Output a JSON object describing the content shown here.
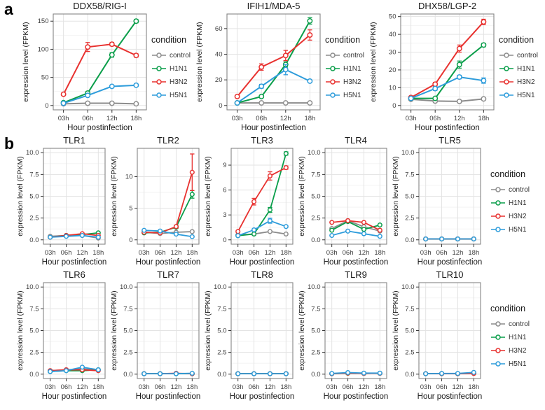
{
  "figure": {
    "panel_a_label": "a",
    "panel_b_label": "b"
  },
  "legend": {
    "title": "condition",
    "items": [
      {
        "label": "control",
        "color": "#8c8c8c"
      },
      {
        "label": "H1N1",
        "color": "#0a9e4a"
      },
      {
        "label": "H3N2",
        "color": "#e8312f"
      },
      {
        "label": "H5N1",
        "color": "#2d9cdb"
      }
    ]
  },
  "axes": {
    "xlabel": "Hour postinfection",
    "ylabel": "expression level (FPKM)",
    "xticks": [
      "03h",
      "06h",
      "12h",
      "18h"
    ]
  },
  "chart_data": [
    {
      "panel": "a",
      "type": "line",
      "title": "DDX58/RIG-I",
      "xlabel": "Hour postinfection",
      "ylabel": "expression level (FPKM)",
      "x": [
        "03h",
        "06h",
        "12h",
        "18h"
      ],
      "yticks": [
        0,
        50,
        100,
        150
      ],
      "ytick_labels": [
        "0",
        "50",
        "100",
        "150"
      ],
      "ylim": [
        0,
        155
      ],
      "series": [
        {
          "name": "control",
          "values": [
            3,
            4,
            4,
            3
          ],
          "err": [
            0,
            0,
            0,
            0
          ]
        },
        {
          "name": "H1N1",
          "values": [
            5,
            22,
            90,
            150
          ],
          "err": [
            0,
            3,
            4,
            3
          ]
        },
        {
          "name": "H3N2",
          "values": [
            20,
            104,
            109,
            89
          ],
          "err": [
            1,
            8,
            3,
            3
          ]
        },
        {
          "name": "H5N1",
          "values": [
            4,
            18,
            34,
            36
          ],
          "err": [
            0,
            2,
            2,
            2
          ]
        }
      ]
    },
    {
      "panel": "a",
      "type": "line",
      "title": "IFIH1/MDA-5",
      "xlabel": "Hour postinfection",
      "ylabel": "expression level (FPKM)",
      "x": [
        "03h",
        "06h",
        "12h",
        "18h"
      ],
      "yticks": [
        0,
        20,
        40,
        60
      ],
      "ytick_labels": [
        "0",
        "20",
        "40",
        "60"
      ],
      "ylim": [
        0,
        68
      ],
      "series": [
        {
          "name": "control",
          "values": [
            2,
            2,
            2,
            2
          ],
          "err": [
            0,
            0,
            0,
            0
          ]
        },
        {
          "name": "H1N1",
          "values": [
            2,
            7,
            32,
            66
          ],
          "err": [
            0,
            1,
            2,
            2.5
          ]
        },
        {
          "name": "H3N2",
          "values": [
            7,
            30,
            39,
            55
          ],
          "err": [
            0.5,
            2.5,
            4,
            4
          ]
        },
        {
          "name": "H5N1",
          "values": [
            2,
            15,
            28,
            19
          ],
          "err": [
            0,
            1.5,
            4,
            1
          ]
        }
      ]
    },
    {
      "panel": "a",
      "type": "line",
      "title": "DHX58/LGP-2",
      "xlabel": "Hour postinfection",
      "ylabel": "expression level (FPKM)",
      "x": [
        "03h",
        "06h",
        "12h",
        "18h"
      ],
      "yticks": [
        0,
        10,
        20,
        30,
        40,
        50
      ],
      "ytick_labels": [
        "0",
        "10",
        "20",
        "30",
        "40",
        "50"
      ],
      "ylim": [
        0,
        49
      ],
      "series": [
        {
          "name": "control",
          "values": [
            3.5,
            2.5,
            2.3,
            3.7
          ],
          "err": [
            0,
            0,
            0,
            0
          ]
        },
        {
          "name": "H1N1",
          "values": [
            4,
            4,
            23,
            34
          ],
          "err": [
            0,
            0.5,
            2,
            1
          ]
        },
        {
          "name": "H3N2",
          "values": [
            4.5,
            12,
            32,
            47
          ],
          "err": [
            0.5,
            1,
            2,
            1.5
          ]
        },
        {
          "name": "H5N1",
          "values": [
            4,
            9.5,
            16,
            14
          ],
          "err": [
            0,
            1,
            1,
            1.5
          ]
        }
      ]
    },
    {
      "panel": "b1",
      "type": "line",
      "title": "TLR1",
      "xlabel": "Hour postinfection",
      "ylabel": "expression level (FPKM)",
      "x": [
        "03h",
        "06h",
        "12h",
        "18h"
      ],
      "yticks": [
        0,
        2.5,
        5,
        7.5,
        10
      ],
      "ytick_labels": [
        "0.0",
        "2.5",
        "5.0",
        "7.5",
        "10.0"
      ],
      "ylim": [
        0,
        10
      ],
      "series": [
        {
          "name": "control",
          "values": [
            0.4,
            0.5,
            0.5,
            0.2
          ],
          "err": [
            0,
            0,
            0,
            0
          ]
        },
        {
          "name": "H1N1",
          "values": [
            0.3,
            0.5,
            0.6,
            0.8
          ],
          "err": [
            0,
            0,
            0,
            0
          ]
        },
        {
          "name": "H3N2",
          "values": [
            0.3,
            0.5,
            0.7,
            0.5
          ],
          "err": [
            0,
            0,
            0,
            0
          ]
        },
        {
          "name": "H5N1",
          "values": [
            0.3,
            0.4,
            0.5,
            0.3
          ],
          "err": [
            0,
            0,
            0,
            0
          ]
        }
      ]
    },
    {
      "panel": "b1",
      "type": "line",
      "title": "TLR2",
      "xlabel": "Hour postinfection",
      "ylabel": "expression level (FPKM)",
      "x": [
        "03h",
        "06h",
        "12h",
        "18h"
      ],
      "yticks": [
        0,
        5,
        10
      ],
      "ytick_labels": [
        "0",
        "5",
        "10"
      ],
      "ylim": [
        0,
        13.8
      ],
      "series": [
        {
          "name": "control",
          "values": [
            1.2,
            1.0,
            1.2,
            1.3
          ],
          "err": [
            0,
            0,
            0,
            0
          ]
        },
        {
          "name": "H1N1",
          "values": [
            1.1,
            1.2,
            2.0,
            7.2
          ],
          "err": [
            0,
            0,
            0.2,
            0.6
          ]
        },
        {
          "name": "H3N2",
          "values": [
            1.2,
            1.1,
            2.1,
            10.7
          ],
          "err": [
            0,
            0,
            0.2,
            2.9
          ]
        },
        {
          "name": "H5N1",
          "values": [
            1.5,
            1.4,
            0.9,
            0.5
          ],
          "err": [
            0,
            0,
            0,
            0
          ]
        }
      ]
    },
    {
      "panel": "b1",
      "type": "line",
      "title": "TLR3",
      "xlabel": "Hour postinfection",
      "ylabel": "expression level (FPKM)",
      "x": [
        "03h",
        "06h",
        "12h",
        "18h"
      ],
      "yticks": [
        0,
        3,
        6,
        9
      ],
      "ytick_labels": [
        "0",
        "3",
        "6",
        "9"
      ],
      "ylim": [
        0,
        10.5
      ],
      "series": [
        {
          "name": "control",
          "values": [
            0.6,
            0.7,
            1.0,
            0.7
          ],
          "err": [
            0,
            0,
            0,
            0
          ]
        },
        {
          "name": "H1N1",
          "values": [
            0.5,
            0.7,
            3.6,
            10.4
          ],
          "err": [
            0,
            0,
            0.3,
            0.2
          ]
        },
        {
          "name": "H3N2",
          "values": [
            1.0,
            4.6,
            7.7,
            8.7
          ],
          "err": [
            0.1,
            0.4,
            0.5,
            0.2
          ]
        },
        {
          "name": "H5N1",
          "values": [
            0.5,
            1.2,
            2.3,
            1.6
          ],
          "err": [
            0,
            0.1,
            0.3,
            0.1
          ]
        }
      ]
    },
    {
      "panel": "b1",
      "type": "line",
      "title": "TLR4",
      "xlabel": "Hour postinfection",
      "ylabel": "expression level (FPKM)",
      "x": [
        "03h",
        "06h",
        "12h",
        "18h"
      ],
      "yticks": [
        0,
        2.5,
        5,
        7.5,
        10
      ],
      "ytick_labels": [
        "0.0",
        "2.5",
        "5.0",
        "7.5",
        "10.0"
      ],
      "ylim": [
        0,
        10
      ],
      "series": [
        {
          "name": "control",
          "values": [
            1.3,
            2.2,
            1.5,
            1.0
          ],
          "err": [
            0,
            0,
            0,
            0
          ]
        },
        {
          "name": "H1N1",
          "values": [
            1.1,
            2.1,
            1.2,
            1.7
          ],
          "err": [
            0,
            0,
            0,
            0
          ]
        },
        {
          "name": "H3N2",
          "values": [
            2.0,
            2.2,
            2.0,
            1.1
          ],
          "err": [
            0,
            0,
            0,
            0
          ]
        },
        {
          "name": "H5N1",
          "values": [
            0.5,
            1.0,
            0.7,
            0.4
          ],
          "err": [
            0,
            0,
            0,
            0
          ]
        }
      ]
    },
    {
      "panel": "b1",
      "type": "line",
      "title": "TLR5",
      "xlabel": "Hour postinfection",
      "ylabel": "expression level (FPKM)",
      "x": [
        "03h",
        "06h",
        "12h",
        "18h"
      ],
      "yticks": [
        0,
        2.5,
        5,
        7.5,
        10
      ],
      "ytick_labels": [
        "0.0",
        "2.5",
        "5.0",
        "7.5",
        "10.0"
      ],
      "ylim": [
        0,
        10
      ],
      "series": [
        {
          "name": "control",
          "values": [
            0.1,
            0.1,
            0.1,
            0.1
          ],
          "err": [
            0,
            0,
            0,
            0
          ]
        },
        {
          "name": "H1N1",
          "values": [
            0.1,
            0.1,
            0.1,
            0.1
          ],
          "err": [
            0,
            0,
            0,
            0
          ]
        },
        {
          "name": "H3N2",
          "values": [
            0.1,
            0.1,
            0.1,
            0.1
          ],
          "err": [
            0,
            0,
            0,
            0
          ]
        },
        {
          "name": "H5N1",
          "values": [
            0.1,
            0.1,
            0.1,
            0.1
          ],
          "err": [
            0,
            0,
            0,
            0
          ]
        }
      ]
    },
    {
      "panel": "b2",
      "type": "line",
      "title": "TLR6",
      "xlabel": "Hour postinfection",
      "ylabel": "expression level (FPKM)",
      "x": [
        "03h",
        "06h",
        "12h",
        "18h"
      ],
      "yticks": [
        0,
        2.5,
        5,
        7.5,
        10
      ],
      "ytick_labels": [
        "0.0",
        "2.5",
        "5.0",
        "7.5",
        "10.0"
      ],
      "ylim": [
        0,
        10
      ],
      "series": [
        {
          "name": "control",
          "values": [
            0.4,
            0.5,
            0.6,
            0.5
          ],
          "err": [
            0,
            0,
            0,
            0
          ]
        },
        {
          "name": "H1N1",
          "values": [
            0.3,
            0.4,
            0.4,
            0.5
          ],
          "err": [
            0,
            0,
            0,
            0
          ]
        },
        {
          "name": "H3N2",
          "values": [
            0.4,
            0.5,
            0.5,
            0.4
          ],
          "err": [
            0,
            0,
            0,
            0
          ]
        },
        {
          "name": "H5N1",
          "values": [
            0.3,
            0.4,
            0.8,
            0.5
          ],
          "err": [
            0,
            0,
            0,
            0
          ]
        }
      ]
    },
    {
      "panel": "b2",
      "type": "line",
      "title": "TLR7",
      "xlabel": "Hour postinfection",
      "ylabel": "expression level (FPKM)",
      "x": [
        "03h",
        "06h",
        "12h",
        "18h"
      ],
      "yticks": [
        0,
        2.5,
        5,
        7.5,
        10
      ],
      "ytick_labels": [
        "0.0",
        "2.5",
        "5.0",
        "7.5",
        "10.0"
      ],
      "ylim": [
        0,
        10
      ],
      "series": [
        {
          "name": "control",
          "values": [
            0.05,
            0.05,
            0.05,
            0.05
          ],
          "err": [
            0,
            0,
            0,
            0
          ]
        },
        {
          "name": "H1N1",
          "values": [
            0.05,
            0.05,
            0.05,
            0.05
          ],
          "err": [
            0,
            0,
            0,
            0
          ]
        },
        {
          "name": "H3N2",
          "values": [
            0.05,
            0.05,
            0.1,
            0.05
          ],
          "err": [
            0,
            0,
            0,
            0
          ]
        },
        {
          "name": "H5N1",
          "values": [
            0.05,
            0.05,
            0.05,
            0.1
          ],
          "err": [
            0,
            0,
            0,
            0
          ]
        }
      ]
    },
    {
      "panel": "b2",
      "type": "line",
      "title": "TLR8",
      "xlabel": "Hour postinfection",
      "ylabel": "expression level (FPKM)",
      "x": [
        "03h",
        "06h",
        "12h",
        "18h"
      ],
      "yticks": [
        0,
        2.5,
        5,
        7.5,
        10
      ],
      "ytick_labels": [
        "0.0",
        "2.5",
        "5.0",
        "7.5",
        "10.0"
      ],
      "ylim": [
        0,
        10
      ],
      "series": [
        {
          "name": "control",
          "values": [
            0.05,
            0.05,
            0.05,
            0.05
          ],
          "err": [
            0,
            0,
            0,
            0
          ]
        },
        {
          "name": "H1N1",
          "values": [
            0.05,
            0.05,
            0.05,
            0.05
          ],
          "err": [
            0,
            0,
            0,
            0
          ]
        },
        {
          "name": "H3N2",
          "values": [
            0.05,
            0.05,
            0.05,
            0.05
          ],
          "err": [
            0,
            0,
            0,
            0
          ]
        },
        {
          "name": "H5N1",
          "values": [
            0.05,
            0.05,
            0.05,
            0.05
          ],
          "err": [
            0,
            0,
            0,
            0
          ]
        }
      ]
    },
    {
      "panel": "b2",
      "type": "line",
      "title": "TLR9",
      "xlabel": "Hour postinfection",
      "ylabel": "expression level (FPKM)",
      "x": [
        "03h",
        "06h",
        "12h",
        "18h"
      ],
      "yticks": [
        0,
        2.5,
        5,
        7.5,
        10
      ],
      "ytick_labels": [
        "0.0",
        "2.5",
        "5.0",
        "7.5",
        "10.0"
      ],
      "ylim": [
        0,
        10
      ],
      "series": [
        {
          "name": "control",
          "values": [
            0.05,
            0.15,
            0.1,
            0.1
          ],
          "err": [
            0,
            0,
            0,
            0
          ]
        },
        {
          "name": "H1N1",
          "values": [
            0.05,
            0.1,
            0.08,
            0.1
          ],
          "err": [
            0,
            0,
            0,
            0
          ]
        },
        {
          "name": "H3N2",
          "values": [
            0.05,
            0.12,
            0.08,
            0.1
          ],
          "err": [
            0,
            0,
            0,
            0
          ]
        },
        {
          "name": "H5N1",
          "values": [
            0.08,
            0.18,
            0.12,
            0.12
          ],
          "err": [
            0,
            0,
            0,
            0
          ]
        }
      ]
    },
    {
      "panel": "b2",
      "type": "line",
      "title": "TLR10",
      "xlabel": "Hour postinfection",
      "ylabel": "expression level (FPKM)",
      "x": [
        "03h",
        "06h",
        "12h",
        "18h"
      ],
      "yticks": [
        0,
        2.5,
        5,
        7.5,
        10
      ],
      "ytick_labels": [
        "0.0",
        "2.5",
        "5.0",
        "7.5",
        "10.0"
      ],
      "ylim": [
        0,
        10
      ],
      "series": [
        {
          "name": "control",
          "values": [
            0.05,
            0.08,
            0.05,
            0.08
          ],
          "err": [
            0,
            0,
            0,
            0
          ]
        },
        {
          "name": "H1N1",
          "values": [
            0.05,
            0.05,
            0.05,
            0.1
          ],
          "err": [
            0,
            0,
            0,
            0
          ]
        },
        {
          "name": "H3N2",
          "values": [
            0.05,
            0.05,
            0.05,
            0.08
          ],
          "err": [
            0,
            0,
            0,
            0
          ]
        },
        {
          "name": "H5N1",
          "values": [
            0.05,
            0.08,
            0.08,
            0.2
          ],
          "err": [
            0,
            0,
            0,
            0
          ]
        }
      ]
    }
  ]
}
